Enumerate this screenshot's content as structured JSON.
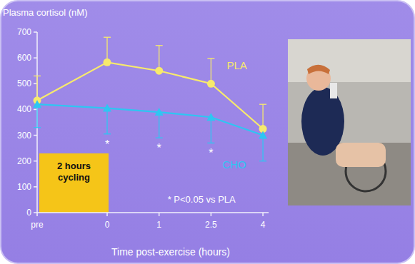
{
  "chart_data": {
    "type": "line",
    "y_label": "Plasma cortisol (nM)",
    "x_label": "Time post-exercise (hours)",
    "categories": [
      "pre",
      "0",
      "1",
      "2.5",
      "4"
    ],
    "series": [
      {
        "name": "PLA",
        "color": "#f7ea6c",
        "marker": "circle",
        "values": [
          435,
          583,
          550,
          500,
          325
        ],
        "error": [
          95,
          97,
          98,
          98,
          95
        ]
      },
      {
        "name": "CHO",
        "color": "#2ec6f2",
        "marker": "triangle",
        "values": [
          420,
          405,
          390,
          370,
          300
        ],
        "error": [
          90,
          100,
          100,
          100,
          100
        ]
      }
    ],
    "significance_labels": [
      null,
      "*",
      "*",
      "*",
      null
    ],
    "annotations": [
      "2 hours cycling",
      "* P<0.05 vs PLA"
    ],
    "ylim": [
      0,
      700
    ],
    "yticks": [
      0,
      100,
      200,
      300,
      400,
      500,
      600,
      700
    ],
    "grid": false
  }
}
